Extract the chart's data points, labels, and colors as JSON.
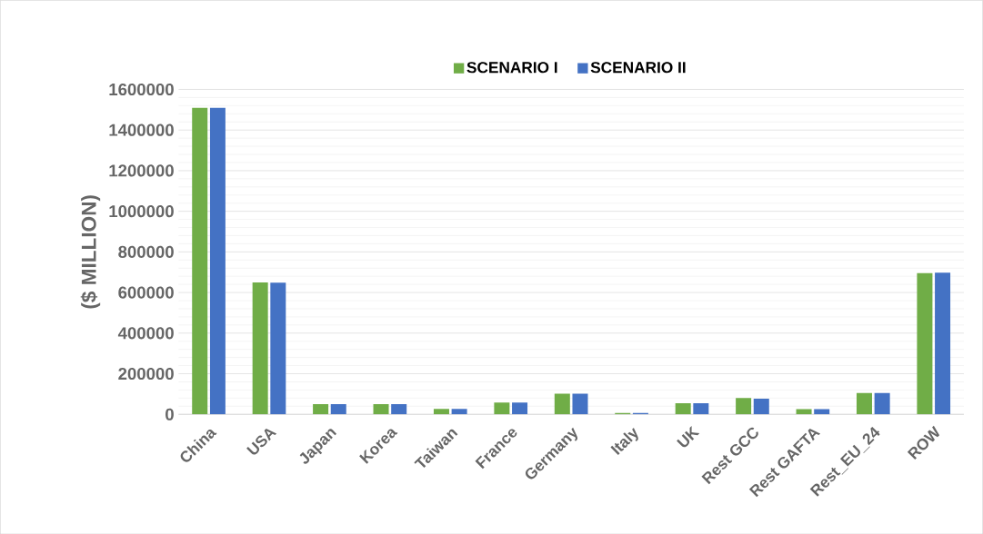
{
  "chart_data": {
    "type": "bar",
    "ylabel": "($ MILLION)",
    "categories": [
      "China",
      "USA",
      "Japan",
      "Korea",
      "Taiwan",
      "France",
      "Germany",
      "Italy",
      "UK",
      "Rest GCC",
      "Rest GAFTA",
      "Rest_EU_24",
      "ROW"
    ],
    "series": [
      {
        "name": "SCENARIO I",
        "color": "#70ad47",
        "values": [
          1510000,
          650000,
          50000,
          50000,
          27000,
          58000,
          102000,
          7000,
          55000,
          80000,
          26000,
          105000,
          695000
        ]
      },
      {
        "name": "SCENARIO II",
        "color": "#4472c4",
        "values": [
          1510000,
          648000,
          50000,
          50000,
          27000,
          58000,
          102000,
          7000,
          55000,
          77000,
          26000,
          105000,
          698000
        ]
      }
    ],
    "ylim": [
      0,
      1600000
    ],
    "yticks": [
      0,
      200000,
      400000,
      600000,
      800000,
      1000000,
      1200000,
      1400000,
      1600000
    ],
    "grid": "y",
    "legend": "top"
  }
}
